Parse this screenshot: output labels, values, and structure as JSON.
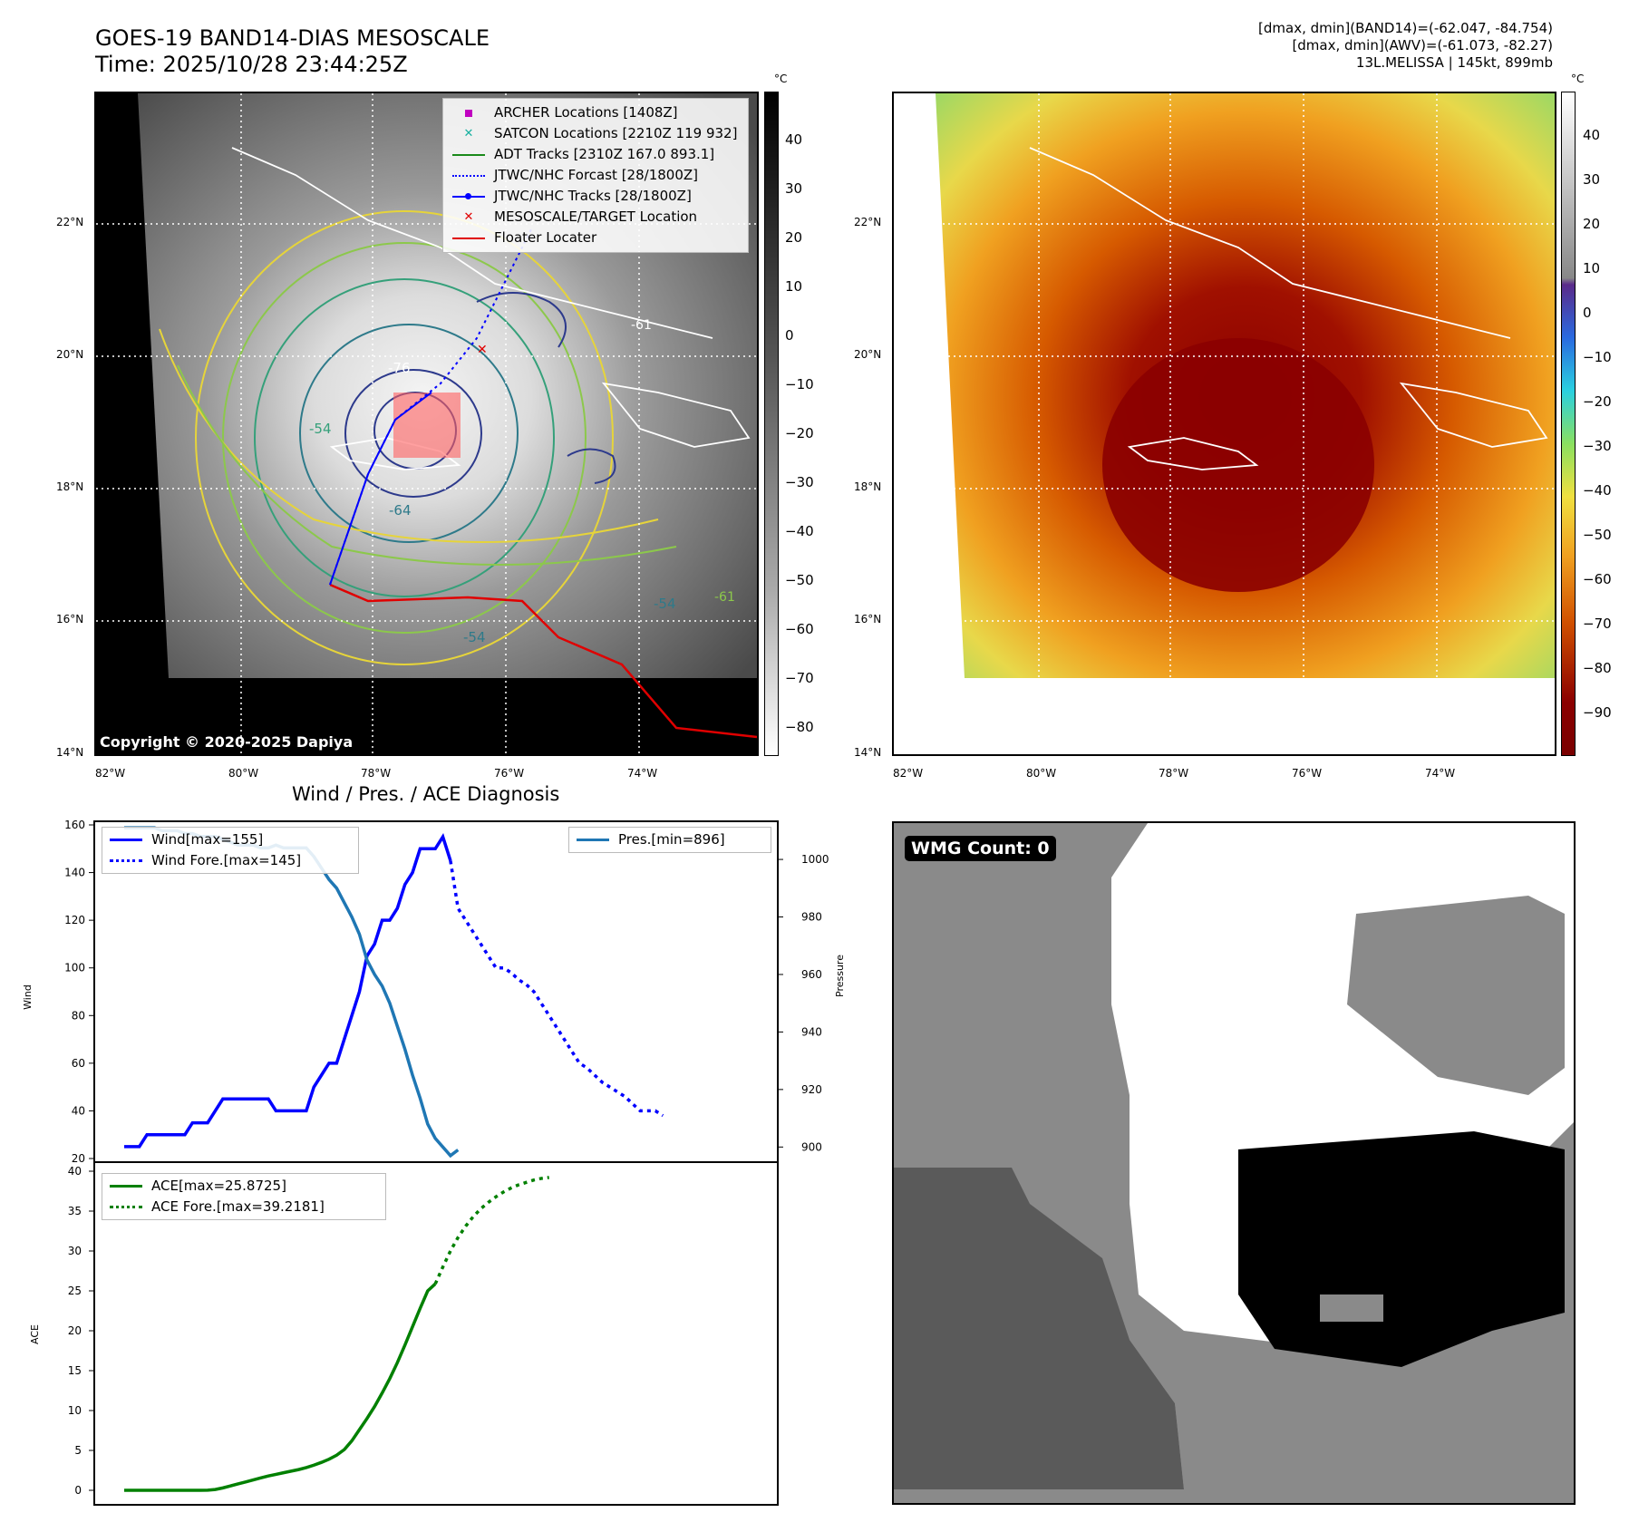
{
  "main_title": {
    "line1": "GOES-19 BAND14-DIAS MESOSCALE",
    "line2": "Time: 2025/10/28 23:44:25Z"
  },
  "right_info": {
    "line1": "[dmax, dmin](BAND14)=(-62.047, -84.754)",
    "line2": "[dmax, dmin](AWV)=(-61.073, -82.27)",
    "line3": "13L.MELISSA | 145kt, 899mb"
  },
  "map": {
    "lon_labels": [
      "82°W",
      "80°W",
      "78°W",
      "76°W",
      "74°W"
    ],
    "lat_labels": [
      "22°N",
      "20°N",
      "18°N",
      "16°N",
      "14°N"
    ],
    "contour_labels": [
      "-76",
      "-54",
      "-64",
      "-54",
      "-54",
      "-61",
      "-61"
    ],
    "copyright": "Copyright © 2020-2025 Dapiya"
  },
  "legend_map": [
    {
      "label": "ARCHER Locations [1408Z]",
      "color": "#c000c0",
      "marker": "square"
    },
    {
      "label": "SATCON Locations [2210Z 119 932]",
      "color": "#18b0a0",
      "marker": "x"
    },
    {
      "label": "ADT Tracks [2310Z 167.0 893.1]",
      "color": "#1a8a1a",
      "marker": "line"
    },
    {
      "label": "JTWC/NHC Forcast [28/1800Z]",
      "color": "#0000ff",
      "marker": "dotted"
    },
    {
      "label": "JTWC/NHC Tracks [28/1800Z]",
      "color": "#0000ff",
      "marker": "line-dot"
    },
    {
      "label": "MESOSCALE/TARGET Location",
      "color": "#e00000",
      "marker": "x"
    },
    {
      "label": "Floater Locater",
      "color": "#e00000",
      "marker": "line"
    }
  ],
  "colorbar_left": {
    "unit": "°C",
    "ticks": [
      "40",
      "30",
      "20",
      "10",
      "0",
      "−10",
      "−20",
      "−30",
      "−40",
      "−50",
      "−60",
      "−70",
      "−80"
    ]
  },
  "colorbar_right": {
    "unit": "°C",
    "ticks": [
      "40",
      "30",
      "20",
      "10",
      "0",
      "−10",
      "−20",
      "−30",
      "−40",
      "−50",
      "−60",
      "−70",
      "−80",
      "−90"
    ]
  },
  "diag_title": "Wind / Pres. / ACE Diagnosis",
  "wmg": {
    "label": "WMG Count: 0",
    "colors": [
      "#ffffff",
      "#8a8a8a",
      "#5a5a5a",
      "#000000"
    ]
  },
  "chart_data": [
    {
      "type": "line",
      "title": "Wind / Pres. / ACE Diagnosis",
      "ylabel": "Wind",
      "y2label": "Pressure",
      "ylim": [
        20,
        160
      ],
      "y2lim": [
        896,
        1012
      ],
      "yticks": [
        20,
        40,
        60,
        80,
        100,
        120,
        140,
        160
      ],
      "y2ticks": [
        900,
        920,
        940,
        960,
        980,
        1000
      ],
      "series": [
        {
          "name": "Wind[max=155]",
          "axis": "left",
          "style": "solid",
          "color": "#0000ff",
          "values": [
            25,
            25,
            25,
            30,
            30,
            30,
            30,
            30,
            30,
            35,
            35,
            35,
            40,
            45,
            45,
            45,
            45,
            45,
            45,
            45,
            40,
            40,
            40,
            40,
            40,
            50,
            55,
            60,
            60,
            70,
            80,
            90,
            105,
            110,
            120,
            120,
            125,
            135,
            140,
            150,
            150,
            150,
            155,
            145
          ]
        },
        {
          "name": "Wind Fore.[max=145]",
          "axis": "left",
          "style": "dotted",
          "color": "#0000ff",
          "values": [
            145,
            125,
            120,
            115,
            110,
            105,
            100,
            100,
            98,
            95,
            93,
            90,
            85,
            80,
            75,
            70,
            65,
            60,
            58,
            55,
            52,
            50,
            48,
            46,
            43,
            40,
            40,
            40,
            38
          ]
        },
        {
          "name": "Pres.[min=896]",
          "axis": "right",
          "style": "solid",
          "color": "#1f77b4",
          "values": [
            1011,
            1011,
            1011,
            1011,
            1011,
            1010,
            1010,
            1010,
            1009,
            1009,
            1008,
            1008,
            1008,
            1007,
            1006,
            1005,
            1005,
            1005,
            1004,
            1004,
            1005,
            1004,
            1004,
            1004,
            1004,
            1001,
            997,
            993,
            990,
            985,
            980,
            974,
            965,
            960,
            956,
            950,
            942,
            934,
            925,
            917,
            908,
            903,
            900,
            897,
            899
          ]
        }
      ]
    },
    {
      "type": "line",
      "ylabel": "ACE",
      "ylim": [
        0,
        40
      ],
      "yticks": [
        0,
        5,
        10,
        15,
        20,
        25,
        30,
        35,
        40
      ],
      "series": [
        {
          "name": "ACE[max=25.8725]",
          "style": "solid",
          "color": "#008000",
          "values": [
            0,
            0,
            0,
            0,
            0,
            0,
            0,
            0,
            0,
            0,
            0,
            0.02,
            0.1,
            0.3,
            0.55,
            0.8,
            1.05,
            1.3,
            1.55,
            1.8,
            2.0,
            2.2,
            2.4,
            2.6,
            2.85,
            3.15,
            3.5,
            3.9,
            4.4,
            5.1,
            6.2,
            7.6,
            9.0,
            10.5,
            12.2,
            14.0,
            16.0,
            18.2,
            20.5,
            22.8,
            25.0,
            25.87
          ]
        },
        {
          "name": "ACE Fore.[max=39.2181]",
          "style": "dotted",
          "color": "#008000",
          "values": [
            25.87,
            28.0,
            30.0,
            31.7,
            33.1,
            34.3,
            35.3,
            36.1,
            36.8,
            37.4,
            37.9,
            38.3,
            38.6,
            38.9,
            39.1,
            39.22
          ]
        }
      ]
    }
  ]
}
